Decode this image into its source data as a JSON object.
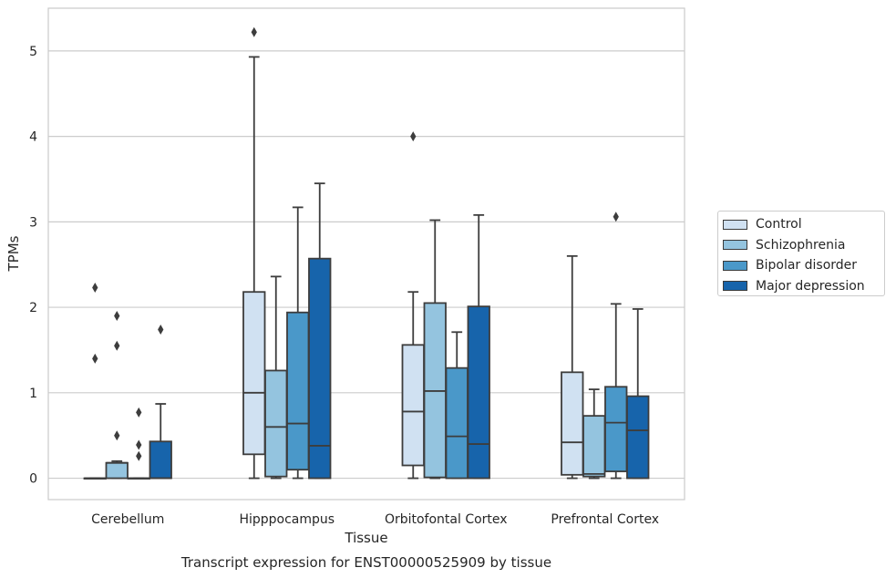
{
  "chart_data": {
    "type": "box",
    "caption": "Transcript expression for ENST00000525909 by tissue",
    "xlabel": "Tissue",
    "ylabel": "TPMs",
    "ylim": [
      -0.25,
      5.5
    ],
    "yticks": [
      0,
      1,
      2,
      3,
      4,
      5
    ],
    "grid": true,
    "legend_position": "right",
    "categories": [
      "Cerebellum",
      "Hipppocampus",
      "Orbitofontal Cortex",
      "Prefrontal Cortex"
    ],
    "series": [
      {
        "name": "Control",
        "color": "#d0e1f2",
        "boxes": [
          {
            "whislo": 0,
            "q1": 0,
            "med": 0,
            "q3": 0,
            "whishi": 0,
            "fliers": [
              2.23,
              1.4
            ]
          },
          {
            "whislo": 0,
            "q1": 0.28,
            "med": 1.0,
            "q3": 2.18,
            "whishi": 4.93,
            "fliers": [
              5.22
            ]
          },
          {
            "whislo": 0,
            "q1": 0.15,
            "med": 0.78,
            "q3": 1.56,
            "whishi": 2.18,
            "fliers": [
              4.0
            ]
          },
          {
            "whislo": 0,
            "q1": 0.04,
            "med": 0.42,
            "q3": 1.24,
            "whishi": 2.6,
            "fliers": []
          }
        ]
      },
      {
        "name": "Schizophrenia",
        "color": "#94c4df",
        "boxes": [
          {
            "whislo": 0,
            "q1": 0,
            "med": 0.18,
            "q3": 0.18,
            "whishi": 0.2,
            "fliers": [
              1.9,
              1.55,
              0.5
            ]
          },
          {
            "whislo": 0,
            "q1": 0.02,
            "med": 0.6,
            "q3": 1.26,
            "whishi": 2.36,
            "fliers": []
          },
          {
            "whislo": 0,
            "q1": 0.01,
            "med": 1.02,
            "q3": 2.05,
            "whishi": 3.02,
            "fliers": []
          },
          {
            "whislo": 0,
            "q1": 0.02,
            "med": 0.05,
            "q3": 0.73,
            "whishi": 1.04,
            "fliers": []
          }
        ]
      },
      {
        "name": "Bipolar disorder",
        "color": "#4a98c9",
        "boxes": [
          {
            "whislo": 0,
            "q1": 0,
            "med": 0,
            "q3": 0,
            "whishi": 0,
            "fliers": [
              0.77,
              0.39,
              0.26
            ]
          },
          {
            "whislo": 0,
            "q1": 0.1,
            "med": 0.64,
            "q3": 1.94,
            "whishi": 3.17,
            "fliers": []
          },
          {
            "whislo": 0,
            "q1": 0,
            "med": 0.49,
            "q3": 1.29,
            "whishi": 1.71,
            "fliers": []
          },
          {
            "whislo": 0,
            "q1": 0.08,
            "med": 0.65,
            "q3": 1.07,
            "whishi": 2.04,
            "fliers": [
              3.06
            ]
          }
        ]
      },
      {
        "name": "Major depression",
        "color": "#1764ab",
        "boxes": [
          {
            "whislo": 0,
            "q1": 0,
            "med": 0,
            "q3": 0.43,
            "whishi": 0.87,
            "fliers": [
              1.74
            ]
          },
          {
            "whislo": 0,
            "q1": 0,
            "med": 0.38,
            "q3": 2.57,
            "whishi": 3.45,
            "fliers": []
          },
          {
            "whislo": 0,
            "q1": 0,
            "med": 0.4,
            "q3": 2.01,
            "whishi": 3.08,
            "fliers": []
          },
          {
            "whislo": 0,
            "q1": 0,
            "med": 0.56,
            "q3": 0.96,
            "whishi": 1.98,
            "fliers": []
          }
        ]
      }
    ]
  }
}
